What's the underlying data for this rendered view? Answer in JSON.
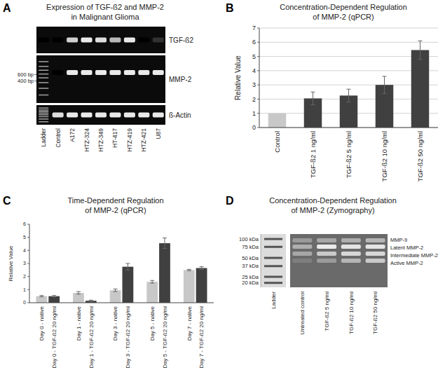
{
  "chart_data": [
    {
      "type": "gel",
      "panel_label": "A",
      "title": [
        "Expression of TGF-ß2 and MMP-2",
        "in Malignant Glioma"
      ],
      "lanes": [
        "Ladder",
        "Control",
        "A172",
        "HTZ-324",
        "HTZ-349",
        "HT-417",
        "HTZ-419",
        "HTZ-421",
        "U87"
      ],
      "bands": [
        {
          "name": "TGF-ß2",
          "values": [
            0,
            0,
            0.85,
            0.95,
            0.9,
            0.75,
            0.95,
            0,
            0.2
          ]
        },
        {
          "name": "MMP-2",
          "values": [
            null,
            0,
            0.95,
            0.95,
            0.95,
            0.95,
            0.95,
            0.95,
            0.95
          ]
        },
        {
          "name": "ß-Actin",
          "values": [
            null,
            0.9,
            0.95,
            0.95,
            0.95,
            0.95,
            0.95,
            0.95,
            0.95
          ]
        }
      ],
      "size_markers": [
        {
          "value": 600,
          "label": "600 bp"
        },
        {
          "value": 400,
          "label": "400 bp"
        }
      ],
      "log": "y",
      "ylim": [
        100,
        2000
      ]
    },
    {
      "type": "bar",
      "panel_label": "B",
      "title": [
        "Concentration-Dependent Regulation",
        "of MMP-2 (qPCR)"
      ],
      "y_label": "Relative Value",
      "categories": [
        "Control",
        "TGF-ß2 1 ng/ml",
        "TGF-ß2 5 ng/ml",
        "TGF-ß2 10 ng/ml",
        "TGF-ß2 50 ng/ml"
      ],
      "values": [
        1,
        2.05,
        2.25,
        3,
        5.45
      ],
      "errors": [
        null,
        0.45,
        0.45,
        0.6,
        0.65
      ],
      "colors": [
        "#c8c8c8",
        "#404040",
        "#404040",
        "#404040",
        "#404040"
      ],
      "ylim": [
        0,
        7
      ],
      "yticks": [
        0,
        1,
        2,
        3,
        4,
        5,
        6,
        7
      ],
      "grid": true
    },
    {
      "type": "bar",
      "panel_label": "C",
      "title": [
        "Time-Dependent Regulation",
        "of MMP-2 (qPCR)"
      ],
      "y_label": "Relative Value",
      "categories": [
        "Day 0 - native",
        "Day 0 - TGF-ß2 20 ng/ml",
        "Day 1 - native",
        "Day 1 - TGF-ß2 20 ng/ml",
        "Day 3 - native",
        "Day 3 - TGF-ß2 20 ng/ml",
        "Day 5 - native",
        "Day 5 - TGF-ß2 20 ng/ml",
        "Day 7 - native",
        "Day 7 - TGF-ß2 20 ng/ml"
      ],
      "values": [
        0.5,
        0.5,
        0.75,
        0.15,
        0.95,
        2.75,
        1.6,
        4.55,
        2.5,
        2.65
      ],
      "errors": [
        0.05,
        0.05,
        0.1,
        0.05,
        0.1,
        0.25,
        0.1,
        0.4,
        0.05,
        0.1
      ],
      "colors": [
        "#c8c8c8",
        "#404040",
        "#c8c8c8",
        "#404040",
        "#c8c8c8",
        "#404040",
        "#c8c8c8",
        "#404040",
        "#c8c8c8",
        "#404040"
      ],
      "ylim": [
        0,
        6
      ],
      "yticks": [
        0,
        1,
        2,
        3,
        4,
        5,
        6
      ],
      "grid": false
    },
    {
      "type": "gel",
      "panel_label": "D",
      "title": [
        "Concentration-Dependent Regulation",
        "of MMP-2 (Zymography)"
      ],
      "lanes": [
        "Ladder",
        "Untreated control",
        "TGF-ß2 5 ng/ml",
        "TGF-ß2 10 ng/ml",
        "TGF-ß2 50 ng/ml"
      ],
      "bands": [
        {
          "name": "MMP-9",
          "values": [
            null,
            0.35,
            0.45,
            0.5,
            0.55
          ]
        },
        {
          "name": "Latent MMP-2",
          "values": [
            null,
            0.5,
            0.95,
            0.9,
            0.9
          ]
        },
        {
          "name": "Intermediate MMP-2",
          "values": [
            null,
            0.45,
            0.7,
            0.8,
            0.8
          ]
        },
        {
          "name": "Active MMP-2",
          "values": [
            null,
            0.15,
            0.35,
            0.55,
            0.7
          ]
        }
      ],
      "size_markers": [
        {
          "value": 100,
          "label": "100 kDa"
        },
        {
          "value": 75,
          "label": "75 kDa"
        },
        {
          "value": 50,
          "label": "50 kDa"
        },
        {
          "value": 37,
          "label": "37 kDa"
        },
        {
          "value": 25,
          "label": "25 kDa"
        },
        {
          "value": 20,
          "label": "20 kDa"
        }
      ],
      "log": "y",
      "ylim": [
        17,
        120
      ]
    }
  ]
}
